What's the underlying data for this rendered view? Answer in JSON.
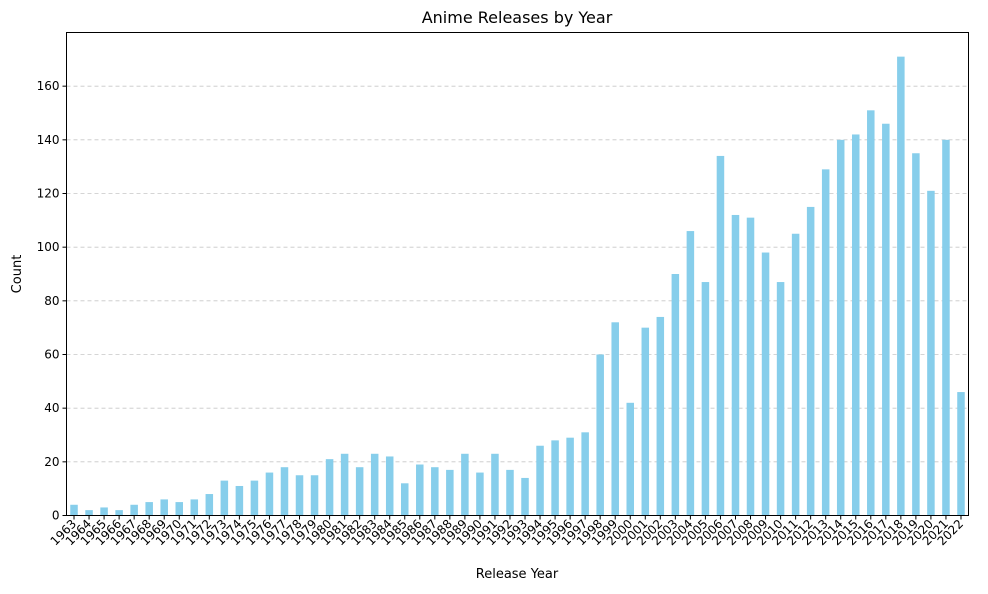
{
  "chart_data": {
    "type": "bar",
    "title": "Anime Releases by Year",
    "xlabel": "Release Year",
    "ylabel": "Count",
    "ylim": [
      0,
      180
    ],
    "yticks": [
      0,
      20,
      40,
      60,
      80,
      100,
      120,
      140,
      160
    ],
    "grid": "y-dashed",
    "bar_color": "#87ceeb",
    "categories": [
      "1963",
      "1964",
      "1965",
      "1966",
      "1967",
      "1968",
      "1969",
      "1970",
      "1971",
      "1972",
      "1973",
      "1974",
      "1975",
      "1976",
      "1977",
      "1978",
      "1979",
      "1980",
      "1981",
      "1982",
      "1983",
      "1984",
      "1985",
      "1986",
      "1987",
      "1988",
      "1989",
      "1990",
      "1991",
      "1992",
      "1993",
      "1994",
      "1995",
      "1996",
      "1997",
      "1998",
      "1999",
      "2000",
      "2001",
      "2002",
      "2003",
      "2004",
      "2005",
      "2006",
      "2007",
      "2008",
      "2009",
      "2010",
      "2011",
      "2012",
      "2013",
      "2014",
      "2015",
      "2016",
      "2017",
      "2018",
      "2019",
      "2020",
      "2021",
      "2022"
    ],
    "values": [
      4,
      2,
      3,
      2,
      4,
      5,
      6,
      5,
      6,
      8,
      13,
      11,
      13,
      16,
      18,
      15,
      15,
      21,
      23,
      18,
      23,
      22,
      12,
      19,
      18,
      17,
      23,
      16,
      23,
      17,
      14,
      26,
      28,
      29,
      31,
      60,
      72,
      42,
      70,
      74,
      90,
      106,
      87,
      134,
      112,
      111,
      98,
      87,
      105,
      115,
      129,
      140,
      142,
      151,
      146,
      171,
      135,
      121,
      140,
      46
    ]
  }
}
